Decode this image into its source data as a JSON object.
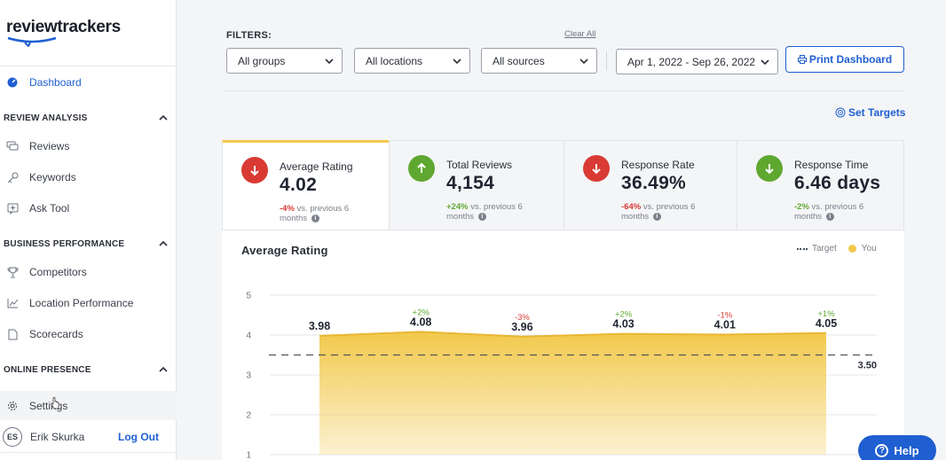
{
  "brand": {
    "name": "reviewtrackers"
  },
  "sidebar": {
    "dashboard": "Dashboard",
    "sections": [
      {
        "title": "REVIEW ANALYSIS",
        "items": [
          "Reviews",
          "Keywords",
          "Ask Tool"
        ]
      },
      {
        "title": "BUSINESS PERFORMANCE",
        "items": [
          "Competitors",
          "Location Performance",
          "Scorecards"
        ]
      },
      {
        "title": "ONLINE PRESENCE",
        "items": []
      }
    ],
    "settings": "Settings",
    "user": {
      "initials": "ES",
      "name": "Erik Skurka",
      "logout": "Log Out"
    }
  },
  "filters": {
    "label": "FILTERS:",
    "clear_all": "Clear All",
    "groups": "All groups",
    "locations": "All locations",
    "sources": "All sources",
    "date_range": "Apr 1, 2022 - Sep 26, 2022",
    "print": "Print Dashboard",
    "set_targets": "Set Targets"
  },
  "kpis": [
    {
      "title": "Average Rating",
      "value": "4.02",
      "delta": "-4%",
      "delta_text": "vs. previous 6 months",
      "trend": "down",
      "arrow_color": "#d93a34"
    },
    {
      "title": "Total Reviews",
      "value": "4,154",
      "delta": "+24%",
      "delta_text": "vs. previous 6 months",
      "trend": "up",
      "arrow_color": "#5fa830"
    },
    {
      "title": "Response Rate",
      "value": "36.49%",
      "delta": "-64%",
      "delta_text": "vs. previous 6 months",
      "trend": "down",
      "arrow_color": "#d93a34"
    },
    {
      "title": "Response Time",
      "value": "6.46 days",
      "delta": "-2%",
      "delta_text": "vs. previous 6 months",
      "trend": "down",
      "arrow_color": "#5fa830"
    }
  ],
  "chart_data": {
    "type": "area",
    "title": "Average Rating",
    "legend": [
      "Target",
      "You"
    ],
    "legend_placement": "top-right",
    "y_ticks": [
      "5",
      "4",
      "3",
      "2",
      "1"
    ],
    "ylim": [
      1,
      5
    ],
    "grid": true,
    "values": [
      3.98,
      4.08,
      3.96,
      4.03,
      4.01,
      4.05
    ],
    "value_labels": [
      "3.98",
      "4.08",
      "3.96",
      "4.03",
      "4.01",
      "4.05"
    ],
    "change_labels": [
      "",
      "+2%",
      "-3%",
      "+2%",
      "-1%",
      "+1%"
    ],
    "change_colors": [
      "",
      "#5fa830",
      "#d93a34",
      "#5fa830",
      "#d93a34",
      "#5fa830"
    ],
    "target": 3.5,
    "target_label": "3.50",
    "area_color": "#f2c94c"
  },
  "help": {
    "label": "Help"
  }
}
